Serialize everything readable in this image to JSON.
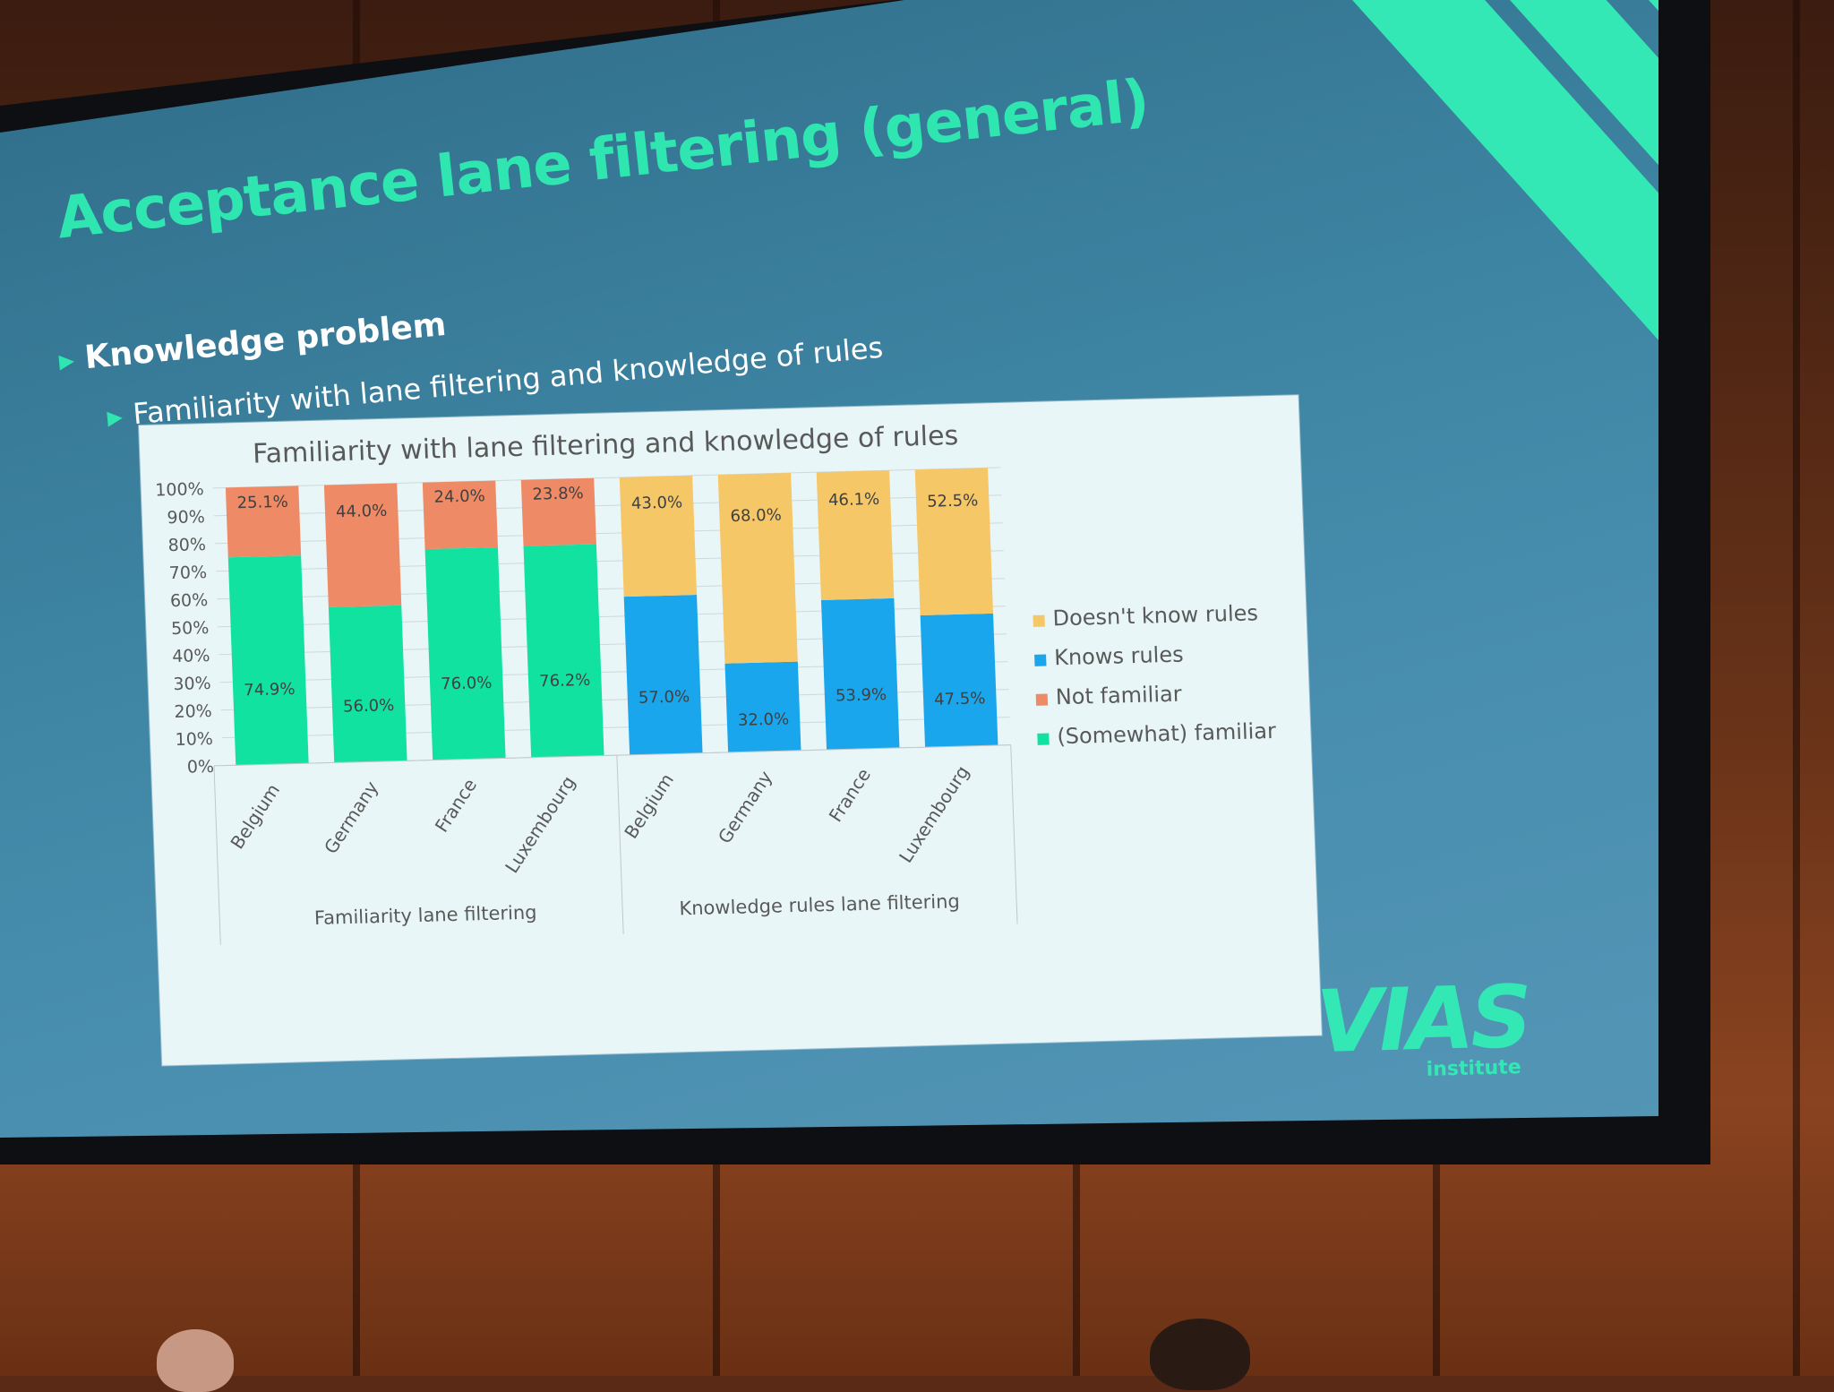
{
  "slide": {
    "title": "Acceptance lane filtering (general)",
    "bullet_1": "Knowledge problem",
    "bullet_2": "Familiarity with lane filtering and knowledge of rules"
  },
  "logo": {
    "main": "VIAS",
    "sub": "institute"
  },
  "colors": {
    "somewhat_familiar": "#12e2a0",
    "not_familiar": "#ee8a66",
    "knows_rules": "#1aa6ec",
    "doesnt_know_rules": "#f6c766",
    "accent": "#33e8b4"
  },
  "chart_data": {
    "type": "bar",
    "stacked": true,
    "title": "Familiarity with lane filtering and knowledge of rules",
    "ylim": [
      0,
      100
    ],
    "y_ticks": [
      "0%",
      "10%",
      "20%",
      "30%",
      "40%",
      "50%",
      "60%",
      "70%",
      "80%",
      "90%",
      "100%"
    ],
    "grid": true,
    "legend_position": "right",
    "groups": [
      {
        "label": "Familiarity lane filtering",
        "categories": [
          "Belgium",
          "Germany",
          "France",
          "Luxembourg"
        ],
        "series": [
          {
            "name": "(Somewhat) familiar",
            "values": [
              74.9,
              56.0,
              76.0,
              76.2
            ],
            "labels": [
              "74.9%",
              "56.0%",
              "76.0%",
              "76.2%"
            ]
          },
          {
            "name": "Not familiar",
            "values": [
              25.1,
              44.0,
              24.0,
              23.8
            ],
            "labels": [
              "25.1%",
              "44.0%",
              "24.0%",
              "23.8%"
            ]
          }
        ]
      },
      {
        "label": "Knowledge rules lane filtering",
        "categories": [
          "Belgium",
          "Germany",
          "France",
          "Luxembourg"
        ],
        "series": [
          {
            "name": "Knows rules",
            "values": [
              57.0,
              32.0,
              53.9,
              47.5
            ],
            "labels": [
              "57.0%",
              "32.0%",
              "53.9%",
              "47.5%"
            ]
          },
          {
            "name": "Doesn't know rules",
            "values": [
              43.0,
              68.0,
              46.1,
              52.5
            ],
            "labels": [
              "43.0%",
              "68.0%",
              "46.1%",
              "52.5%"
            ]
          }
        ]
      }
    ],
    "legend": [
      "Doesn't know rules",
      "Knows rules",
      "Not familiar",
      "(Somewhat) familiar"
    ]
  }
}
